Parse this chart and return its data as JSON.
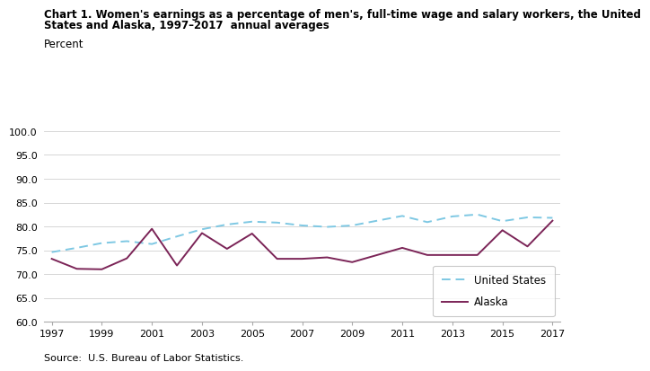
{
  "title_line1": "Chart 1. Women's earnings as a percentage of men's, full-time wage and salary workers, the United",
  "title_line2": "States and Alaska, 1997–2017  annual averages",
  "ylabel_text": "Percent",
  "source": "Source:  U.S. Bureau of Labor Statistics.",
  "years": [
    1997,
    1998,
    1999,
    2000,
    2001,
    2002,
    2003,
    2004,
    2005,
    2006,
    2007,
    2008,
    2009,
    2010,
    2011,
    2012,
    2013,
    2014,
    2015,
    2016,
    2017
  ],
  "us_data": [
    74.6,
    75.5,
    76.5,
    76.9,
    76.3,
    77.9,
    79.4,
    80.4,
    81.0,
    80.8,
    80.2,
    79.9,
    80.2,
    81.2,
    82.2,
    80.9,
    82.1,
    82.5,
    81.1,
    81.9,
    81.8
  ],
  "ak_data": [
    73.2,
    71.1,
    71.0,
    73.3,
    79.5,
    71.8,
    78.6,
    75.3,
    78.5,
    73.2,
    73.2,
    73.5,
    72.5,
    74.0,
    75.5,
    74.0,
    74.0,
    74.0,
    79.2,
    75.8,
    81.2
  ],
  "us_color": "#7EC8E3",
  "ak_color": "#7B2457",
  "ylim": [
    60.0,
    100.0
  ],
  "yticks": [
    60.0,
    65.0,
    70.0,
    75.0,
    80.0,
    85.0,
    90.0,
    95.0,
    100.0
  ],
  "xlim_start": 1997,
  "xlim_end": 2017,
  "xticks": [
    1997,
    1999,
    2001,
    2003,
    2005,
    2007,
    2009,
    2011,
    2013,
    2015,
    2017
  ],
  "grid_color": "#d0d0d0"
}
